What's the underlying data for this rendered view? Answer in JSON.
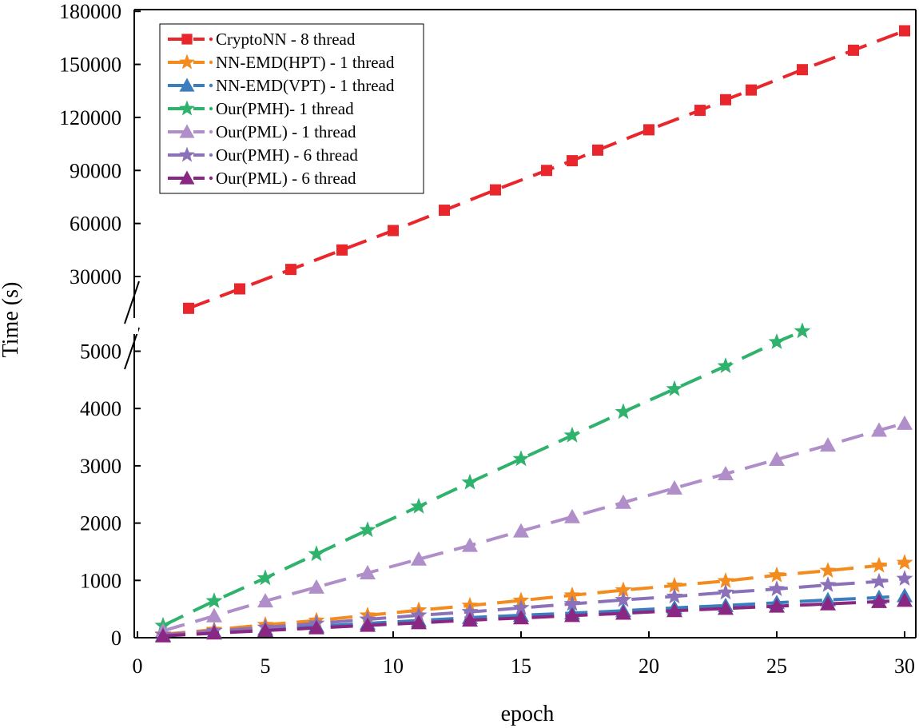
{
  "chart_data": {
    "type": "line",
    "title": "",
    "xlabel": "epoch",
    "ylabel": "Time (s)",
    "xlim": [
      0,
      30.5
    ],
    "x_ticks": [
      "0",
      "5",
      "10",
      "15",
      "20",
      "25",
      "30"
    ],
    "y_axis_break": true,
    "y_ticks_lower": [
      "0",
      "1000",
      "2000",
      "3000",
      "4000",
      "5000"
    ],
    "y_ticks_upper": [
      "30000",
      "60000",
      "90000",
      "120000",
      "150000",
      "180000"
    ],
    "ylim_lower": [
      0,
      5500
    ],
    "ylim_upper": [
      15000,
      180000
    ],
    "legend_position": "top-left",
    "series": [
      {
        "name": "CryptoNN - 8 thread",
        "color": "#e8262b",
        "marker": "square",
        "segment": "upper",
        "x": [
          2,
          4,
          6,
          8,
          10,
          12,
          14,
          16,
          17,
          18,
          20,
          22,
          23,
          24,
          26,
          28,
          30
        ],
        "values": [
          12000,
          23000,
          34000,
          45000,
          56000,
          67500,
          79000,
          90000,
          95500,
          101500,
          113000,
          124000,
          130000,
          135500,
          147000,
          158000,
          169000
        ]
      },
      {
        "name": "NN-EMD(HPT) - 1 thread",
        "color": "#f38b1f",
        "marker": "star",
        "segment": "lower",
        "x": [
          1,
          3,
          5,
          7,
          9,
          11,
          13,
          15,
          17,
          19,
          21,
          23,
          25,
          27,
          29,
          30
        ],
        "values": [
          60,
          140,
          225,
          300,
          390,
          480,
          560,
          650,
          740,
          830,
          910,
          990,
          1090,
          1170,
          1260,
          1310
        ]
      },
      {
        "name": "NN-EMD(VPT) - 1 thread",
        "color": "#3a7ebd",
        "marker": "triangle",
        "segment": "lower",
        "x": [
          1,
          3,
          5,
          7,
          9,
          11,
          13,
          15,
          17,
          19,
          21,
          23,
          25,
          27,
          29,
          30
        ],
        "values": [
          40,
          100,
          150,
          200,
          250,
          300,
          350,
          390,
          430,
          470,
          520,
          560,
          610,
          660,
          700,
          730
        ]
      },
      {
        "name": "Our(PMH)- 1 thread",
        "color": "#2fb26b",
        "marker": "star",
        "segment": "lower",
        "x": [
          1,
          3,
          5,
          7,
          9,
          11,
          13,
          15,
          17,
          19,
          21,
          23,
          25,
          26
        ],
        "values": [
          210,
          640,
          1040,
          1460,
          1880,
          2290,
          2710,
          3120,
          3530,
          3940,
          4340,
          4740,
          5160,
          5350
        ]
      },
      {
        "name": "Our(PML) - 1 thread",
        "color": "#b08ec9",
        "marker": "triangle",
        "segment": "lower",
        "x": [
          1,
          3,
          5,
          7,
          9,
          11,
          13,
          15,
          17,
          19,
          21,
          23,
          25,
          27,
          29,
          30
        ],
        "values": [
          120,
          380,
          640,
          880,
          1130,
          1370,
          1610,
          1860,
          2110,
          2360,
          2610,
          2860,
          3110,
          3360,
          3620,
          3740
        ]
      },
      {
        "name": "Our(PMH) - 6 thread",
        "color": "#8b72b8",
        "marker": "star",
        "segment": "lower",
        "x": [
          1,
          3,
          5,
          7,
          9,
          11,
          13,
          15,
          17,
          19,
          21,
          23,
          25,
          27,
          29,
          30
        ],
        "values": [
          50,
          120,
          180,
          250,
          320,
          390,
          450,
          520,
          590,
          660,
          720,
          790,
          850,
          920,
          980,
          1030
        ]
      },
      {
        "name": "Our(PML) - 6 thread",
        "color": "#8a2783",
        "marker": "triangle",
        "segment": "lower",
        "x": [
          1,
          3,
          5,
          7,
          9,
          11,
          13,
          15,
          17,
          19,
          21,
          23,
          25,
          27,
          29,
          30
        ],
        "values": [
          30,
          80,
          125,
          170,
          215,
          260,
          305,
          345,
          385,
          425,
          470,
          510,
          550,
          590,
          630,
          650
        ]
      }
    ]
  }
}
